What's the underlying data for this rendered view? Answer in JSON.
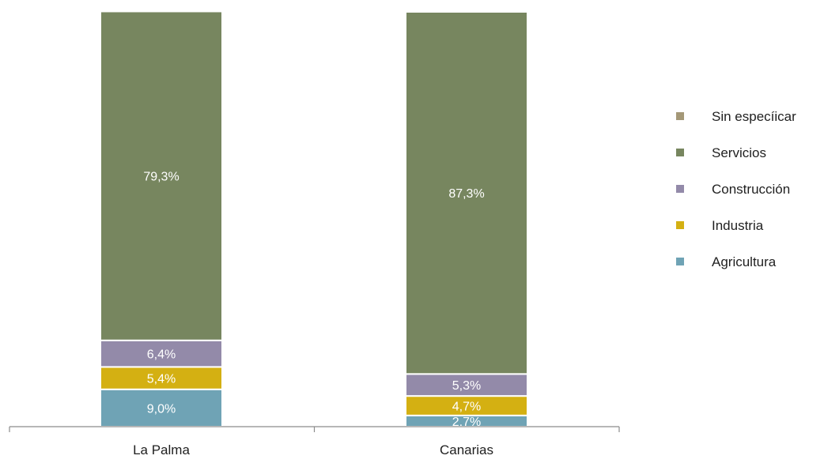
{
  "chart_data": {
    "type": "bar",
    "stacked": true,
    "percent_stacked": true,
    "categories": [
      "La Palma",
      "Canarias"
    ],
    "series": [
      {
        "name": "Agricultura",
        "values": [
          9.0,
          2.7
        ],
        "labels": [
          "9,0%",
          "2,7%"
        ],
        "color": "#6fa3b5"
      },
      {
        "name": "Industria",
        "values": [
          5.4,
          4.7
        ],
        "labels": [
          "5,4%",
          "4,7%"
        ],
        "color": "#d4b012"
      },
      {
        "name": "Construcción",
        "values": [
          6.4,
          5.3
        ],
        "labels": [
          "6,4%",
          "5,3%"
        ],
        "color": "#938aa9"
      },
      {
        "name": "Servicios",
        "values": [
          79.3,
          87.3
        ],
        "labels": [
          "79,3%",
          "87,3%"
        ],
        "color": "#77865f"
      },
      {
        "name": "Sin especíicar",
        "values": [
          0,
          0
        ],
        "labels": [
          "",
          ""
        ],
        "color": "#a49877"
      }
    ],
    "legend_order": [
      "Sin especíicar",
      "Servicios",
      "Construcción",
      "Industria",
      "Agricultura"
    ],
    "legend_position": "right",
    "ylim": [
      0,
      100
    ],
    "grid": false,
    "title": "",
    "xlabel": "",
    "ylabel": ""
  }
}
